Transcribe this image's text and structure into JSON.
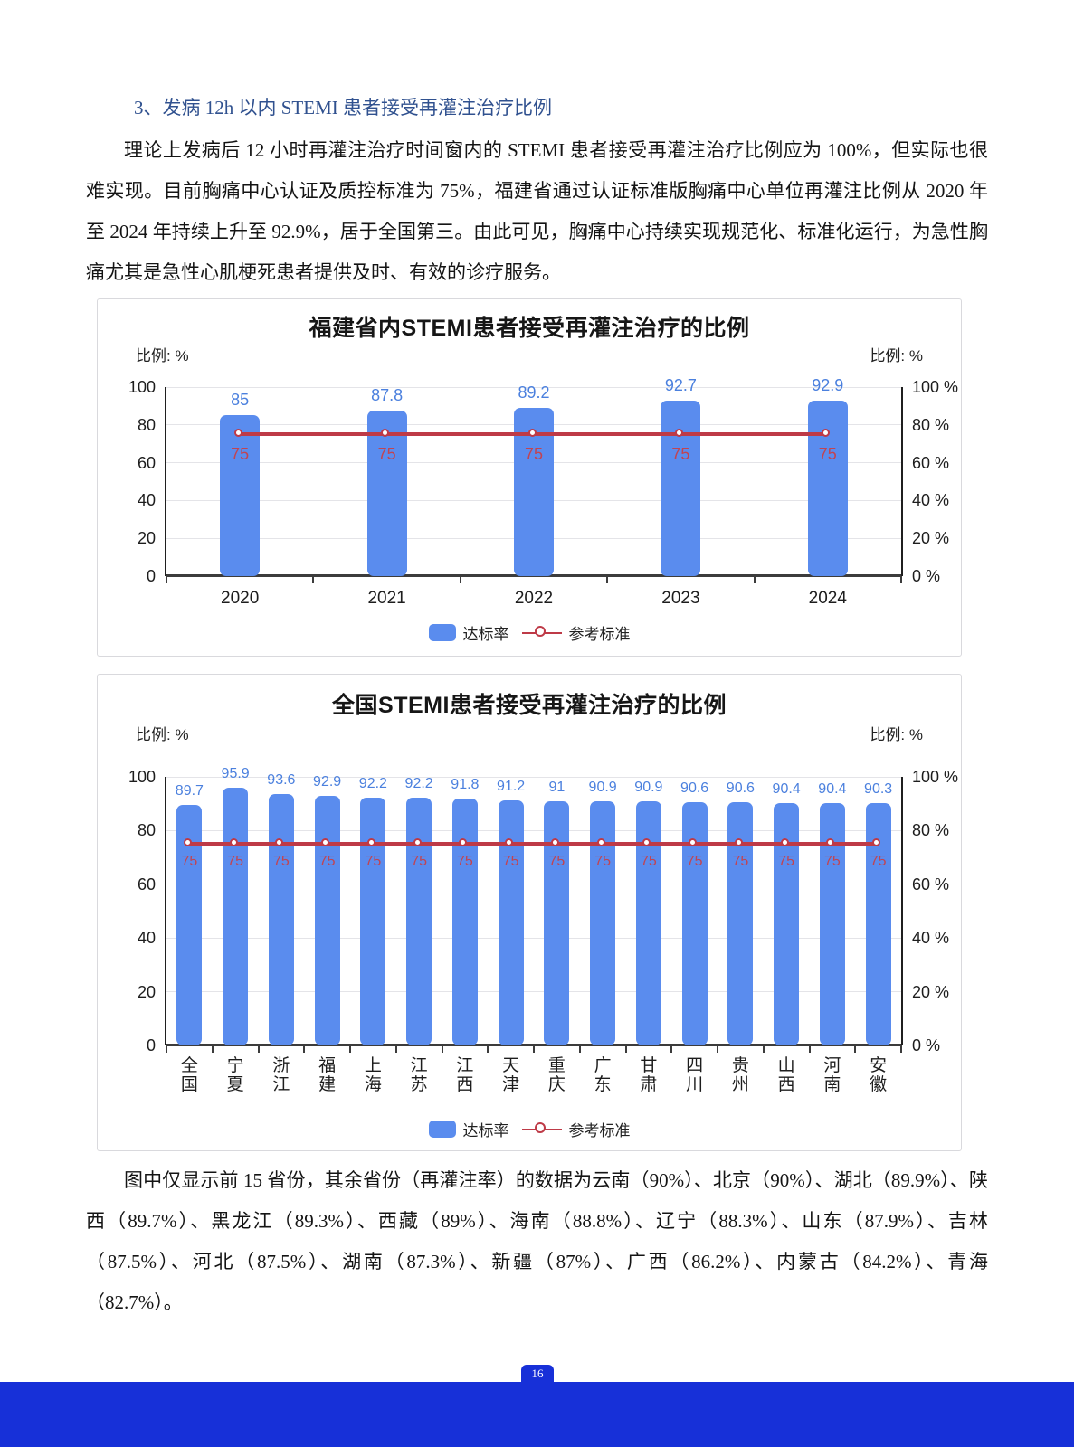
{
  "page": {
    "heading": "3、发病 12h 以内 STEMI 患者接受再灌注治疗比例",
    "para1": "理论上发病后 12 小时再灌注治疗时间窗内的 STEMI 患者接受再灌注治疗比例应为 100%，但实际也很难实现。目前胸痛中心认证及质控标准为 75%，福建省通过认证标准版胸痛中心单位再灌注比例从 2020 年至 2024 年持续上升至 92.9%，居于全国第三。由此可见，胸痛中心持续实现规范化、标准化运行，为急性胸痛尤其是急性心肌梗死患者提供及时、有效的诊疗服务。",
    "para2": "图中仅显示前 15 省份，其余省份（再灌注率）的数据为云南（90%）、北京（90%）、湖北（89.9%）、陕西（89.7%）、黑龙江（89.3%）、西藏（89%）、海南（88.8%）、辽宁（88.3%）、山东（87.9%）、吉林（87.5%）、河北（87.5%）、湖南（87.3%）、新疆（87%）、广西（86.2%）、内蒙古（84.2%）、青海（82.7%）。",
    "page_number": "16"
  },
  "colors": {
    "heading_blue": "#30518F",
    "bar_blue": "#5A8CEE",
    "bar_label_blue": "#4B80DE",
    "ref_red": "#BE3A47",
    "ref_label_red": "#C14452",
    "footer_blue": "#1730D8",
    "grid_gray": "#e4e4e8"
  },
  "chart_data": [
    {
      "type": "bar",
      "title": "福建省内STEMI患者接受再灌注治疗的比例",
      "axis_unit_left": "比例: %",
      "axis_unit_right": "比例: %",
      "categories": [
        "2020",
        "2021",
        "2022",
        "2023",
        "2024"
      ],
      "series": [
        {
          "name": "达标率",
          "type": "bar",
          "values": [
            85,
            87.8,
            89.2,
            92.7,
            92.9
          ]
        },
        {
          "name": "参考标准",
          "type": "line",
          "values": [
            75,
            75,
            75,
            75,
            75
          ]
        }
      ],
      "reference_value": 75,
      "ylim": [
        0,
        100
      ],
      "yticks": [
        0,
        20,
        40,
        60,
        80,
        100
      ],
      "ytick_right_suffix": " %",
      "grid": true,
      "legend": [
        "达标率",
        "参考标准"
      ],
      "legend_position": "bottom",
      "category_orientation": "horizontal"
    },
    {
      "type": "bar",
      "title": "全国STEMI患者接受再灌注治疗的比例",
      "axis_unit_left": "比例: %",
      "axis_unit_right": "比例: %",
      "categories": [
        "全国",
        "宁夏",
        "浙江",
        "福建",
        "上海",
        "江苏",
        "江西",
        "天津",
        "重庆",
        "广东",
        "甘肃",
        "四川",
        "贵州",
        "山西",
        "河南",
        "安徽"
      ],
      "series": [
        {
          "name": "达标率",
          "type": "bar",
          "values": [
            89.7,
            95.9,
            93.6,
            92.9,
            92.2,
            92.2,
            91.8,
            91.2,
            91,
            90.9,
            90.9,
            90.6,
            90.6,
            90.4,
            90.4,
            90.3
          ]
        },
        {
          "name": "参考标准",
          "type": "line",
          "values": [
            75,
            75,
            75,
            75,
            75,
            75,
            75,
            75,
            75,
            75,
            75,
            75,
            75,
            75,
            75,
            75
          ]
        }
      ],
      "reference_value": 75,
      "ylim": [
        0,
        100
      ],
      "yticks": [
        0,
        20,
        40,
        60,
        80,
        100
      ],
      "ytick_right_suffix": " %",
      "grid": true,
      "legend": [
        "达标率",
        "参考标准"
      ],
      "legend_position": "bottom",
      "category_orientation": "vertical"
    }
  ]
}
